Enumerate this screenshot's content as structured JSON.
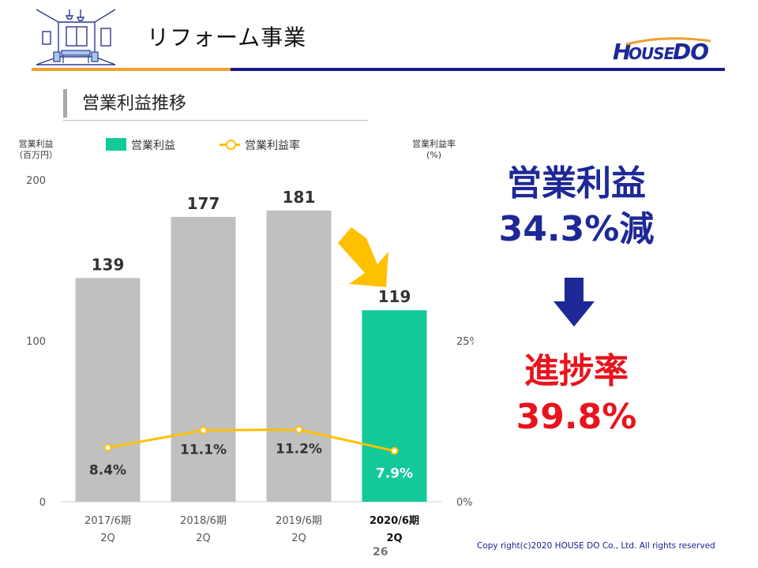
{
  "header": {
    "title": "リフォーム事業",
    "logo_text": "HouseDo"
  },
  "section": {
    "title": "営業利益推移"
  },
  "legend": {
    "bar_label": "営業利益",
    "line_label": "営業利益率"
  },
  "axis_captions": {
    "left": "営業利益\n（百万円）",
    "right": "営業利益率\n(%)"
  },
  "chart_data": {
    "type": "bar",
    "categories": [
      "2017/6期\n2Q",
      "2018/6期\n2Q",
      "2019/6期\n2Q",
      "2020/6期\n2Q"
    ],
    "series": [
      {
        "name": "営業利益",
        "type": "bar",
        "axis": "left",
        "values": [
          139,
          177,
          181,
          119
        ],
        "labels": [
          "139",
          "177",
          "181",
          "119"
        ]
      },
      {
        "name": "営業利益率",
        "type": "line",
        "axis": "right",
        "values": [
          8.4,
          11.1,
          11.2,
          7.9
        ],
        "labels": [
          "8.4%",
          "11.1%",
          "11.2%",
          "7.9%"
        ]
      }
    ],
    "ylim": [
      0,
      200
    ],
    "yticks": [
      "0",
      "100",
      "200"
    ],
    "y2lim": [
      0,
      50
    ],
    "y2ticks": [
      "0%",
      "25%"
    ],
    "highlight_index": 3,
    "colors": {
      "bar": "#c0c0c0",
      "bar_highlight": "#12c99a",
      "line": "#ffc000",
      "arrow": "#ffc000"
    }
  },
  "callouts": {
    "profit_label": "営業利益",
    "profit_change": "34.3%減",
    "progress_label": "進捗率",
    "progress_value": "39.8%",
    "blue": "#1e2896",
    "red": "#e8141e"
  },
  "footer": {
    "page_number": "26",
    "copyright": "Copy right(c)2020  HOUSE DO Co., Ltd. All rights reserved"
  }
}
